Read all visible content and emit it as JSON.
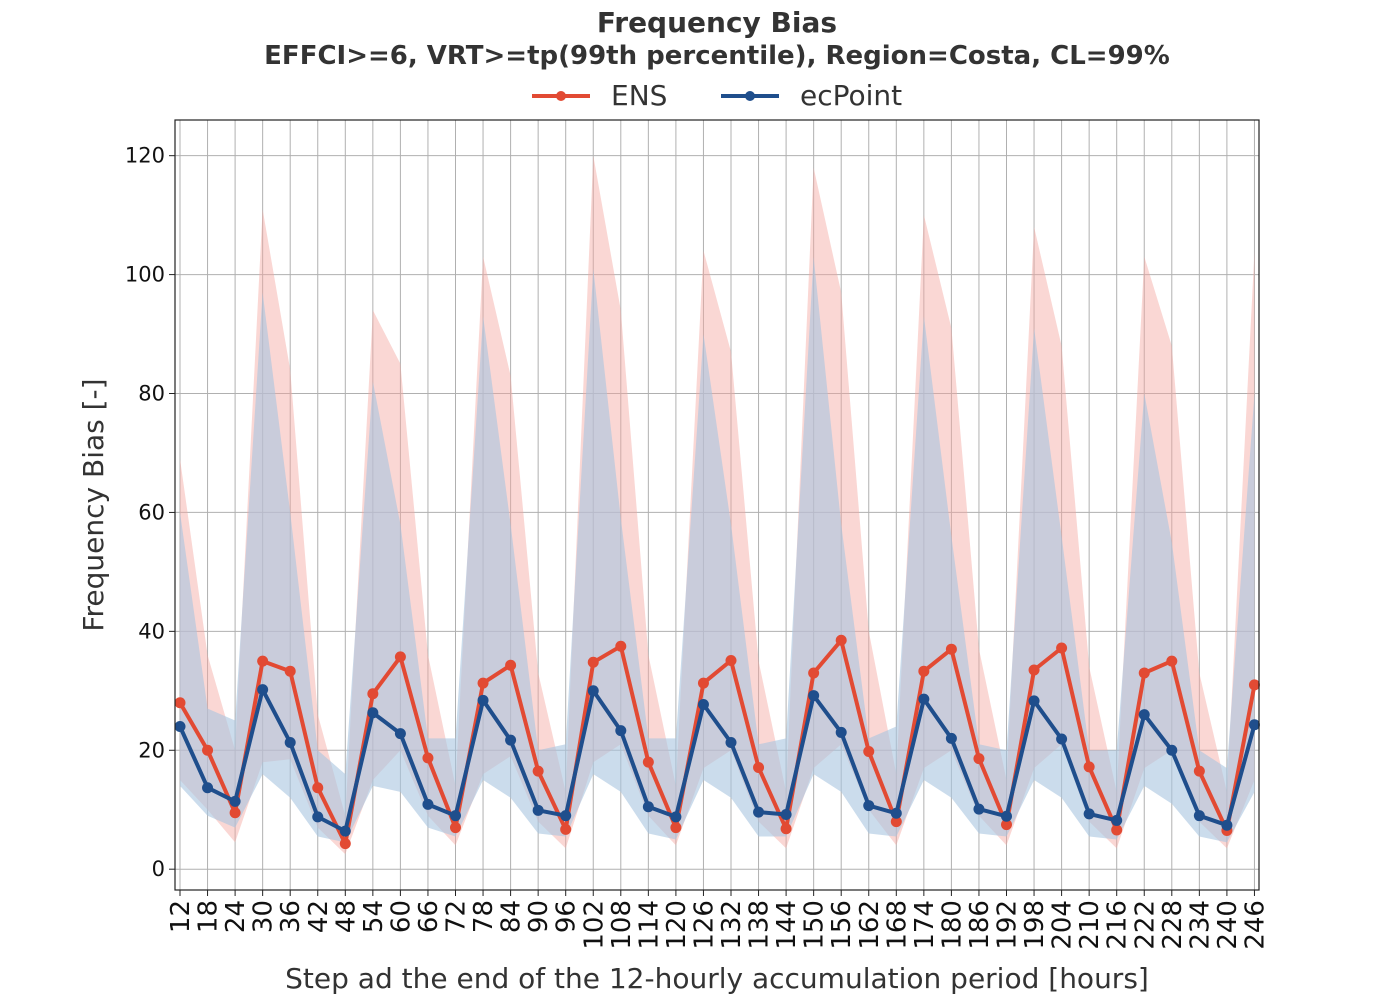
{
  "chart_data": {
    "type": "line",
    "title": "Frequency Bias",
    "subtitle": "EFFCI>=6, VRT>=tp(99th percentile), Region=Costa, CL=99%",
    "xlabel": "Step ad the end of the 12-hourly accumulation period [hours]",
    "ylabel": "Frequency Bias [-]",
    "grid": true,
    "legend_position": "top-center",
    "ylim": [
      -3.5,
      126
    ],
    "yticks": [
      0,
      20,
      40,
      60,
      80,
      100,
      120
    ],
    "x": [
      12,
      18,
      24,
      30,
      36,
      42,
      48,
      54,
      60,
      66,
      72,
      78,
      84,
      90,
      96,
      102,
      108,
      114,
      120,
      126,
      132,
      138,
      144,
      150,
      156,
      162,
      168,
      174,
      180,
      186,
      192,
      198,
      204,
      210,
      216,
      222,
      228,
      234,
      240,
      246
    ],
    "series": [
      {
        "name": "ENS",
        "color": "#E24A33",
        "band_color": "#F4A6A0",
        "values": [
          28,
          20,
          9.5,
          35,
          33.3,
          13.7,
          4.3,
          29.5,
          35.7,
          18.7,
          7,
          31.3,
          34.3,
          16.5,
          6.7,
          34.8,
          37.5,
          18,
          7,
          31.3,
          35.1,
          17.1,
          6.8,
          33,
          38.5,
          19.8,
          8,
          33.3,
          37,
          18.6,
          7.5,
          33.5,
          37.2,
          17.2,
          6.6,
          33,
          35,
          16.5,
          6.5,
          31
        ],
        "ci_low": [
          15,
          10,
          4.5,
          18,
          18.5,
          7,
          2.5,
          15,
          20,
          9,
          4,
          16,
          19,
          8,
          3.5,
          18,
          21,
          9,
          4,
          17,
          20,
          8,
          3.5,
          17,
          21,
          10,
          4,
          17,
          20,
          9,
          4,
          17,
          21,
          8,
          3.5,
          17,
          20,
          8,
          3.5,
          15
        ],
        "ci_high": [
          69,
          36,
          20,
          111,
          84,
          26,
          9,
          94,
          85,
          36,
          14,
          103,
          83,
          33,
          13,
          120,
          94,
          36,
          14,
          104,
          87,
          35,
          13,
          118,
          97,
          40,
          16,
          110,
          91,
          37,
          15,
          108,
          88,
          34,
          13,
          103,
          88,
          33,
          13,
          104
        ]
      },
      {
        "name": "ecPoint",
        "color": "#1F4E8C",
        "band_color": "#A9C4E0",
        "values": [
          24,
          13.7,
          11.4,
          30.2,
          21.3,
          8.8,
          6.4,
          26.3,
          22.8,
          10.9,
          9,
          28.4,
          21.7,
          9.9,
          9,
          30,
          23.3,
          10.5,
          8.8,
          27.7,
          21.3,
          9.6,
          9.2,
          29.2,
          23,
          10.7,
          9.4,
          28.6,
          22,
          10.1,
          8.9,
          28.3,
          21.9,
          9.3,
          8.2,
          26,
          20,
          9,
          7.4,
          24.3
        ],
        "ci_low": [
          14,
          9,
          7,
          16,
          12,
          5.5,
          4.5,
          14,
          13,
          7,
          5.5,
          15,
          12,
          6,
          5.5,
          16,
          13,
          6,
          5,
          15,
          12,
          5.5,
          5.5,
          16,
          13,
          6,
          5.5,
          15,
          12,
          6,
          5.5,
          15,
          12,
          5.5,
          5,
          14,
          11,
          5.5,
          4.5,
          13
        ],
        "ci_high": [
          60,
          27,
          25,
          97,
          60,
          20,
          16,
          82,
          58,
          22,
          22,
          93,
          58,
          20,
          21,
          101,
          59,
          22,
          22,
          90,
          58,
          21,
          22,
          103,
          58,
          22,
          24,
          93,
          56,
          21,
          20,
          91,
          56,
          20,
          20,
          80,
          55,
          20,
          17,
          80
        ]
      }
    ]
  }
}
